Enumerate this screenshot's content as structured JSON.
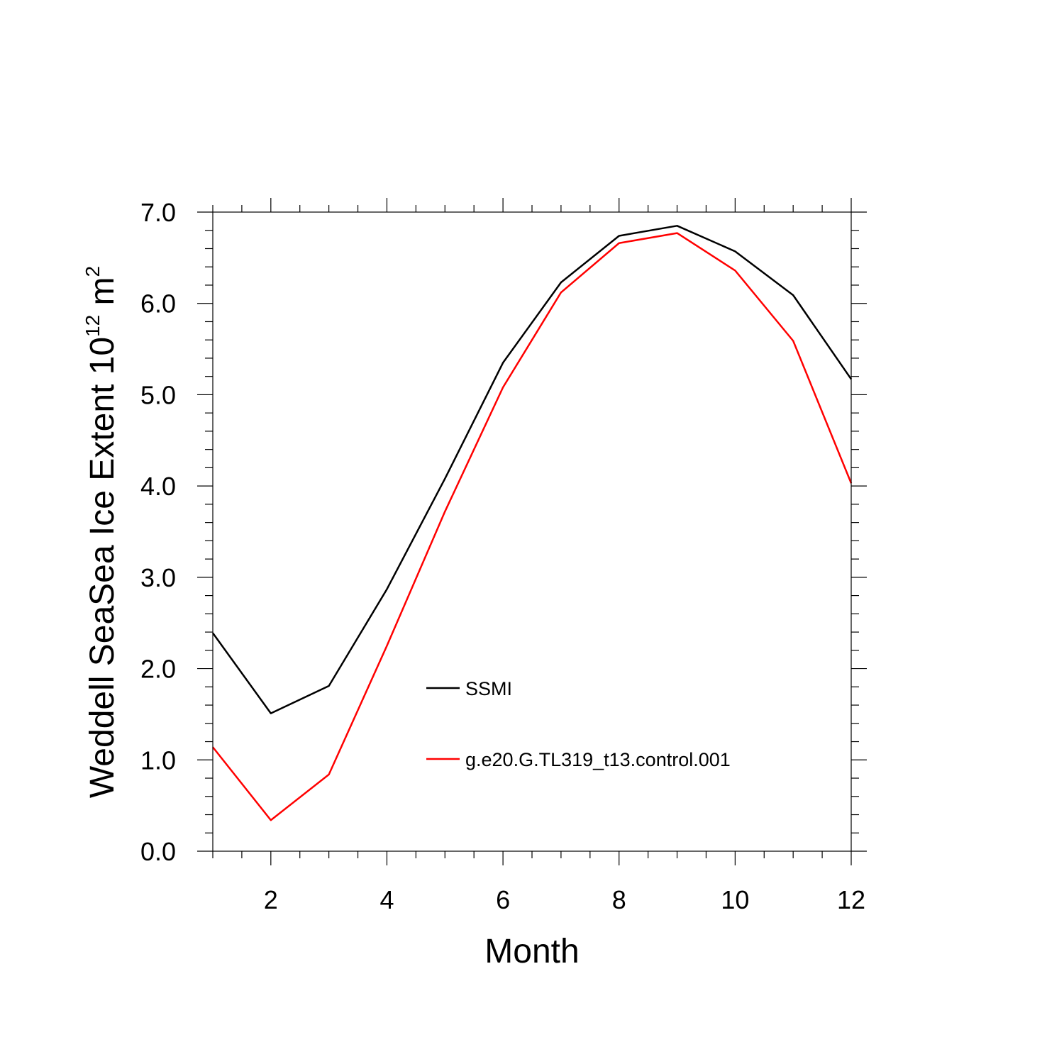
{
  "chart_data": {
    "type": "line",
    "title": "",
    "xlabel": "Month",
    "ylabel": {
      "main": "Weddell SeaSea Ice Extent 10",
      "sup1": "12",
      "unit": " m",
      "sup2": "2"
    },
    "xlim": [
      1,
      12
    ],
    "ylim": [
      0,
      7
    ],
    "x_ticks": [
      2,
      4,
      6,
      8,
      10,
      12
    ],
    "x_tick_labels": [
      "2",
      "4",
      "6",
      "8",
      "10",
      "12"
    ],
    "y_ticks": [
      0,
      1,
      2,
      3,
      4,
      5,
      6,
      7
    ],
    "y_tick_labels": [
      "0.0",
      "1.0",
      "2.0",
      "3.0",
      "4.0",
      "5.0",
      "6.0",
      "7.0"
    ],
    "grid": false,
    "legend_position": "center",
    "x": [
      1,
      2,
      3,
      4,
      5,
      6,
      7,
      8,
      9,
      10,
      11,
      12
    ],
    "series": [
      {
        "name": "SSMI",
        "color": "#000000",
        "values": [
          2.39,
          1.51,
          1.81,
          2.87,
          4.08,
          5.35,
          6.23,
          6.74,
          6.85,
          6.57,
          6.09,
          5.17
        ]
      },
      {
        "name": "g.e20.G.TL319_t13.control.001",
        "color": "#ff0000",
        "values": [
          1.14,
          0.34,
          0.84,
          2.25,
          3.72,
          5.08,
          6.12,
          6.66,
          6.77,
          6.36,
          5.59,
          4.03
        ]
      }
    ]
  }
}
